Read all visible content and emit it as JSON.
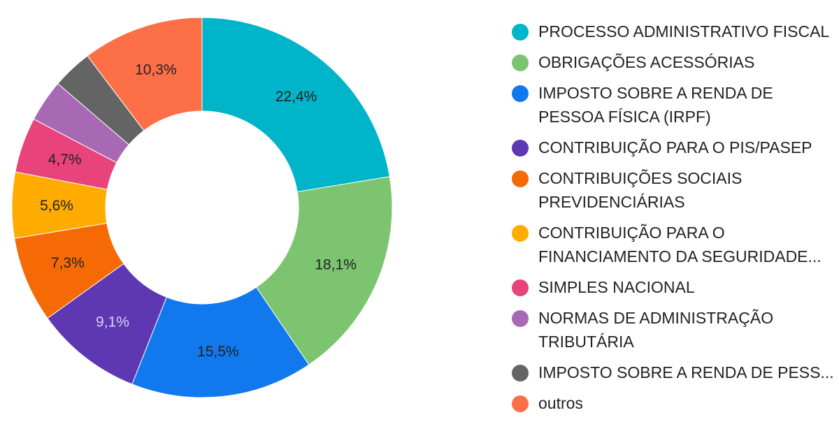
{
  "chart_data": {
    "type": "pie",
    "donut": true,
    "legend_position": "right",
    "slices": [
      {
        "name": "PROCESSO ADMINISTRATIVO FISCAL",
        "legend_label": "PROCESSO ADMINISTRATIVO FISCAL",
        "value": 22.4,
        "label": "22,4%",
        "color": "#00b4c9",
        "label_color": "#222222"
      },
      {
        "name": "OBRIGAÇÕES ACESSÓRIAS",
        "legend_label": "OBRIGAÇÕES ACESSÓRIAS",
        "value": 18.1,
        "label": "18,1%",
        "color": "#7cc470",
        "label_color": "#222222"
      },
      {
        "name": "IMPOSTO SOBRE A RENDA DE PESSOA FÍSICA (IRPF)",
        "legend_label": "IMPOSTO SOBRE A RENDA DE\nPESSOA FÍSICA (IRPF)",
        "value": 15.5,
        "label": "15,5%",
        "color": "#1178ee",
        "label_color": "#222222"
      },
      {
        "name": "CONTRIBUIÇÃO PARA O PIS/PASEP",
        "legend_label": "CONTRIBUIÇÃO PARA O PIS/PASEP",
        "value": 9.1,
        "label": "9,1%",
        "color": "#5e37b3",
        "label_color": "#d9d2ee"
      },
      {
        "name": "CONTRIBUIÇÕES SOCIAIS PREVIDENCIÁRIAS",
        "legend_label": "CONTRIBUIÇÕES SOCIAIS\nPREVIDENCIÁRIAS",
        "value": 7.3,
        "label": "7,3%",
        "color": "#f56a05",
        "label_color": "#222222"
      },
      {
        "name": "CONTRIBUIÇÃO PARA O FINANCIAMENTO DA SEGURIDADE...",
        "legend_label": "CONTRIBUIÇÃO PARA O\nFINANCIAMENTO DA SEGURIDADE...",
        "value": 5.6,
        "label": "5,6%",
        "color": "#ffab00",
        "label_color": "#222222"
      },
      {
        "name": "SIMPLES NACIONAL",
        "legend_label": "SIMPLES NACIONAL",
        "value": 4.7,
        "label": "4,7%",
        "color": "#e8437a",
        "label_color": "#222222"
      },
      {
        "name": "NORMAS DE ADMINISTRAÇÃO TRIBUTÁRIA",
        "legend_label": "NORMAS DE ADMINISTRAÇÃO\nTRIBUTÁRIA",
        "value": 3.6,
        "label": "",
        "color": "#a869b4",
        "label_color": "#222222"
      },
      {
        "name": "IMPOSTO SOBRE A RENDA DE PESS...",
        "legend_label": "IMPOSTO SOBRE A RENDA DE PESS...",
        "value": 3.4,
        "label": "",
        "color": "#646464",
        "label_color": "#222222"
      },
      {
        "name": "outros",
        "legend_label": "outros",
        "value": 10.3,
        "label": "10,3%",
        "color": "#fd6f46",
        "label_color": "#222222"
      }
    ]
  }
}
